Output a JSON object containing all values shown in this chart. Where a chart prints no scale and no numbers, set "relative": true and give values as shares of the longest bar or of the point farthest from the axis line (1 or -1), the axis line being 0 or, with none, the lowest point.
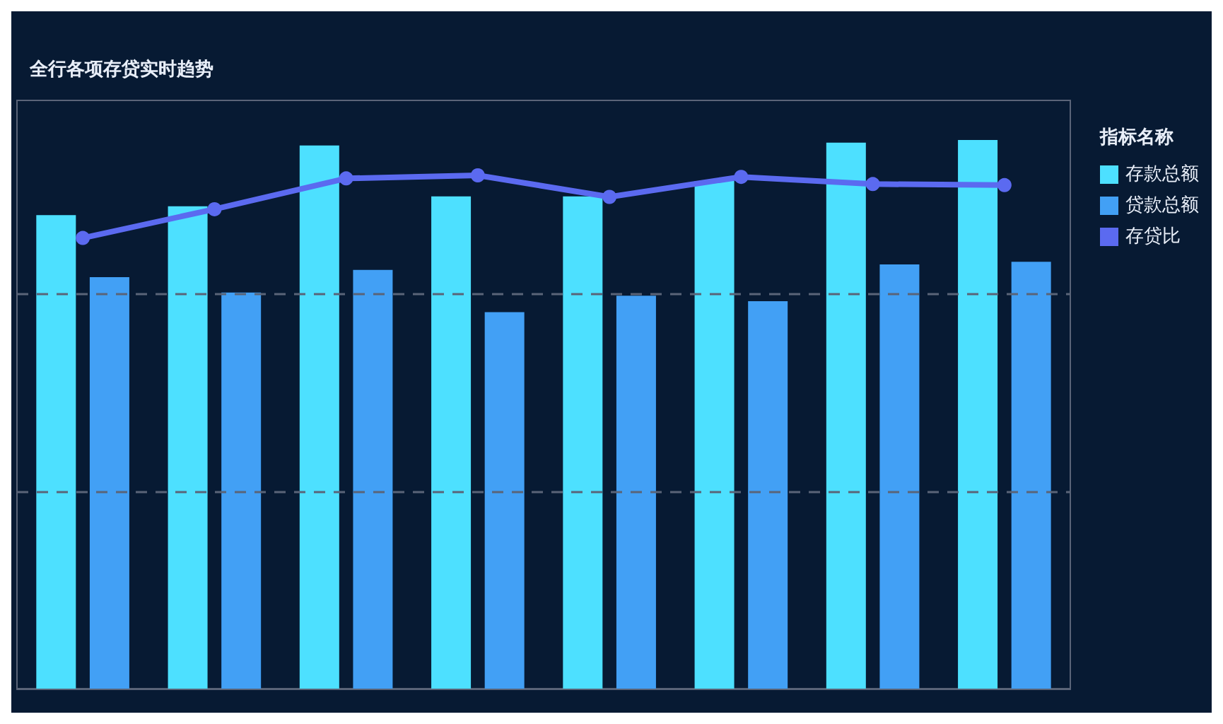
{
  "chart_data": [
    {
      "type": "bar",
      "title": "全行各项存贷实时趋势",
      "legend_title": "指标名称",
      "relative": true,
      "legend": "right",
      "ref_lines": [
        {
          "axis": "y",
          "value": 0.358,
          "color": "#5a6478",
          "line_style": "dashed"
        },
        {
          "axis": "y",
          "value": 0.716,
          "color": "#5a6478",
          "line_style": "dashed"
        }
      ],
      "categories": [
        null,
        null,
        null,
        null,
        null,
        null,
        null,
        null
      ],
      "series": [
        {
          "name": "存款总额",
          "color": "#4de0ff",
          "values": [
            0.863,
            0.879,
            0.99,
            0.897,
            0.897,
            0.925,
            0.995,
            1
          ]
        },
        {
          "name": "贷款总额",
          "color": "#42a0f5",
          "values": [
            0.75,
            0.722,
            0.763,
            0.686,
            0.716,
            0.706,
            0.773,
            0.778
          ]
        }
      ]
    },
    {
      "type": "line",
      "relative": true,
      "legend": "right",
      "marker": "circle",
      "categories": [
        null,
        null,
        null,
        null,
        null,
        null,
        null,
        null
      ],
      "series": [
        {
          "name": "存贷比",
          "color": "#5b6af0",
          "values": [
            0.878,
            0.934,
            0.994,
            1,
            0.958,
            0.997,
            0.983,
            0.981
          ]
        }
      ]
    }
  ]
}
